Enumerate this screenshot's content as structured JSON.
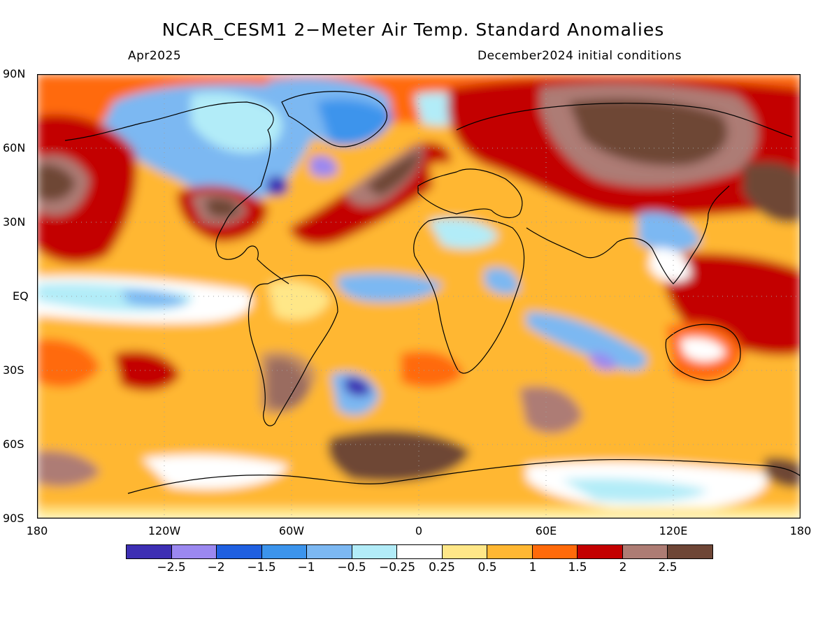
{
  "title": "NCAR_CESM1 2−Meter Air Temp. Standard Anomalies",
  "valid_month": "Apr2025",
  "initial_conditions": "December2024 initial conditions",
  "lat_labels": [
    "90N",
    "60N",
    "30N",
    "EQ",
    "30S",
    "60S",
    "90S"
  ],
  "lon_labels": [
    "180",
    "120W",
    "60W",
    "0",
    "60E",
    "120E",
    "180"
  ],
  "colorbar": {
    "labels": [
      "−2.5",
      "−2",
      "−1.5",
      "−1",
      "−0.5",
      "−0.25",
      "0.25",
      "0.5",
      "1",
      "1.5",
      "2",
      "2.5"
    ],
    "colors": [
      "#3d2fb3",
      "#9b88f0",
      "#2060e0",
      "#3c94ec",
      "#7cb8f2",
      "#b2ecf8",
      "#ffffff",
      "#ffe788",
      "#ffb733",
      "#ff6a0a",
      "#c30000",
      "#ad7c74",
      "#6e4636"
    ]
  }
}
